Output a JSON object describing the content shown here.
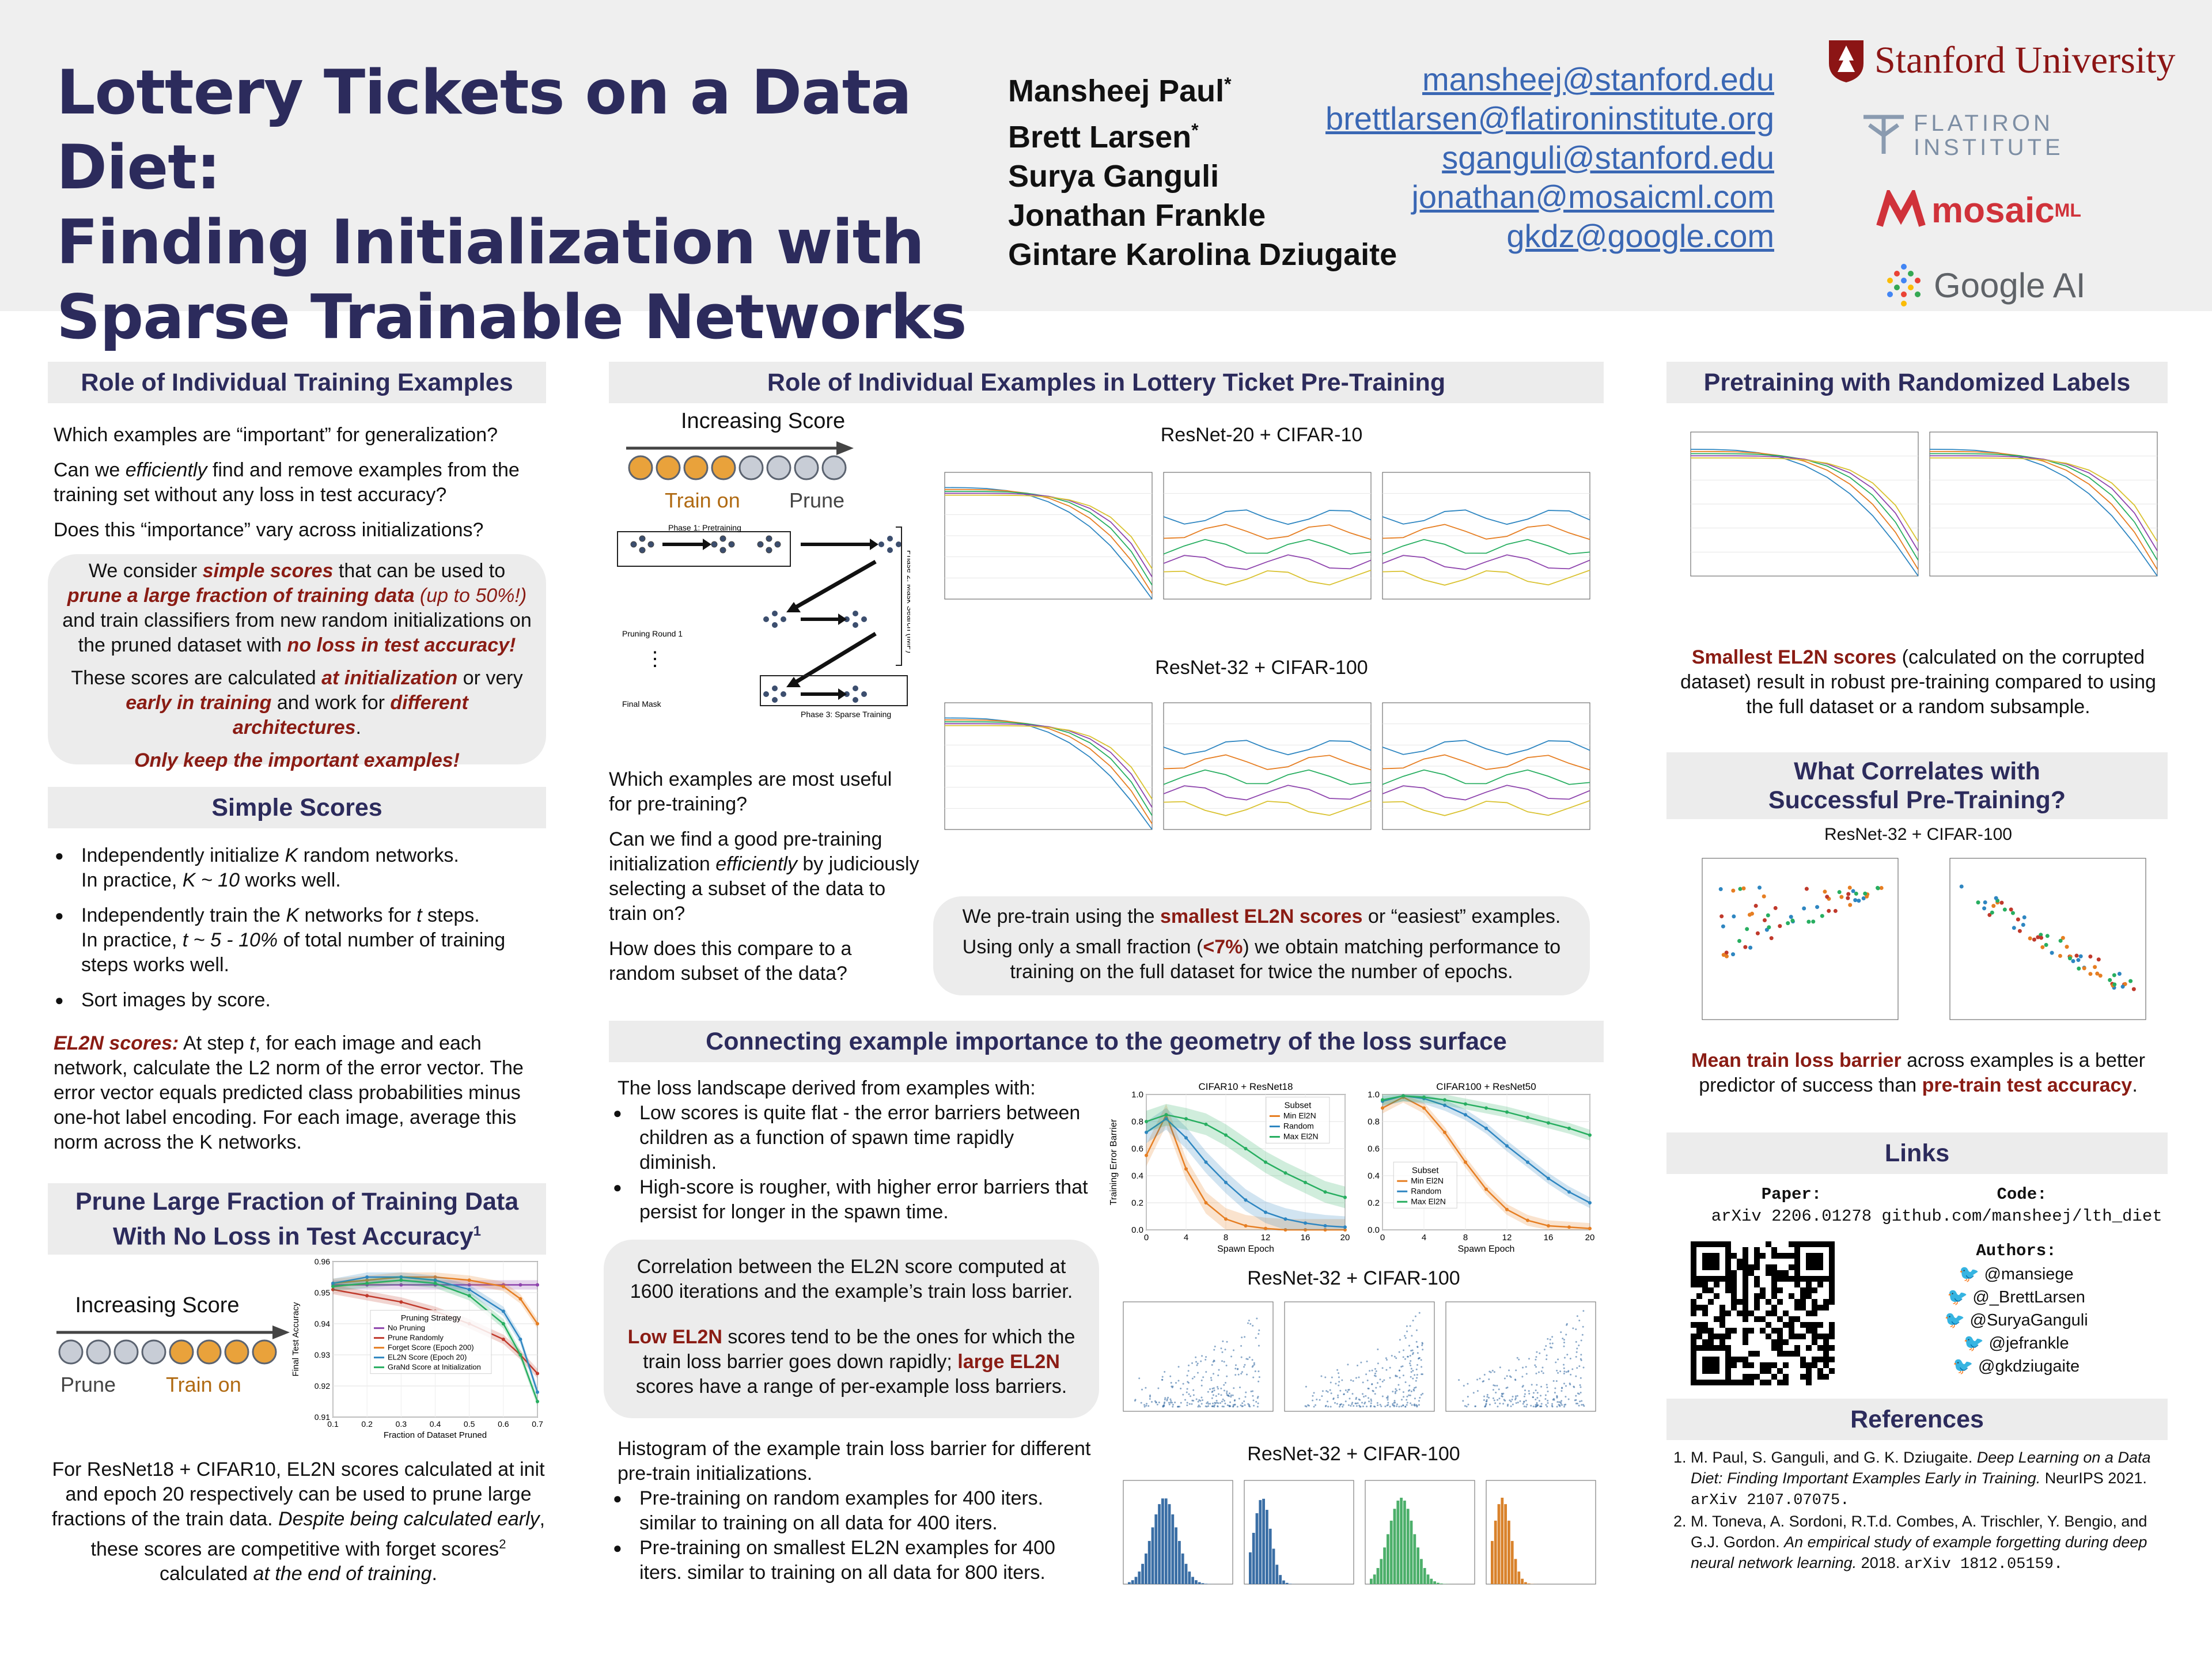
{
  "header": {
    "title_lines": [
      "Lottery Tickets on a Data Diet:",
      "Finding Initialization with",
      "Sparse Trainable Networks"
    ],
    "authors": [
      "Mansheej Paul",
      "Brett Larsen",
      "Surya Ganguli",
      "Jonathan Frankle",
      "Gintare Karolina Dziugaite"
    ],
    "author_mark": "*",
    "emails": [
      "mansheej@stanford.edu",
      "brettlarsen@flatironinstitute.org",
      "sganguli@stanford.edu",
      "jonathan@mosaicml.com",
      "gkdz@google.com"
    ],
    "logos": {
      "stanford": "Stanford University",
      "flatiron_1": "FLATIRON",
      "flatiron_2": "INSTITUTE",
      "mosaic": "mosaic",
      "mosaic_sup": "ML",
      "google": "Google AI"
    },
    "colors": {
      "title": "#2c2b5c",
      "accent_red": "#8a1c14",
      "link_blue": "#3a67b4",
      "stanford_red": "#8c1515"
    }
  },
  "col1": {
    "s1_title": "Role of Individual Training Examples",
    "q1": "Which examples are “important” for generalization?",
    "q2a": "Can we ",
    "q2b": "efficiently",
    "q2c": " find and remove examples from the training set without any loss in test accuracy?",
    "q3": "Does this “importance” vary across initializations?",
    "b1a": "We consider ",
    "b1b": "simple scores",
    "b1c": " that can be used to ",
    "b1d": "prune a large fraction of training data",
    "b1e": " (up to 50%!)",
    "b1f": " and train classifiers from new random initializations on the pruned dataset with ",
    "b1g": "no loss in test accuracy!",
    "b2a": "These scores are calculated ",
    "b2b": "at initialization",
    "b2c": " or very ",
    "b2d": "early in training",
    "b2e": " and work for ",
    "b2f": "different architectures",
    "b2g": ".",
    "b3": "Only keep the important examples!",
    "s2_title": "Simple Scores",
    "l1a": "Independently initialize ",
    "l1b": "K",
    "l1c": " random networks.",
    "l1d": "In practice, ",
    "l1e": "K ~ 10",
    "l1f": " works well.",
    "l2a": "Independently train the ",
    "l2b": "K",
    "l2c": " networks for ",
    "l2d": "t",
    "l2e": " steps.",
    "l2f": "In practice, ",
    "l2g": "t ~ 5 - 10%",
    "l2h": " of total number of training steps works well.",
    "l3": "Sort images by score.",
    "el2n_label": "EL2N scores:",
    "el2n_a": " At step ",
    "el2n_b": "t",
    "el2n_c": ", for each image and each network, calculate the L2 norm of the error vector. The error vector equals predicted class probabilities minus one-hot label encoding. For each image, average this norm across the K networks.",
    "s3_title_1": "Prune Large Fraction of Training Data",
    "s3_title_2": "With No Loss in Test Accuracy",
    "s3_title_sup": "1",
    "scale_title": "Increasing Score",
    "scale_left": "Prune",
    "scale_right": "Train on",
    "p3a": "For ResNet18 + CIFAR10, EL2N scores calculated at init and epoch 20 respectively can be used to prune large fractions of the train data. ",
    "p3b": "Despite being calculated early",
    "p3c": ", these scores are competitive with forget scores",
    "p3sup": "2",
    "p3d": " calculated ",
    "p3e": "at the end of training",
    "p3f": "."
  },
  "col2": {
    "s1_title": "Role of Individual Examples in Lottery Ticket Pre-Training",
    "scale_title": "Increasing Score",
    "scale_left": "Train on",
    "scale_right": "Prune",
    "diagram": {
      "phase1": "Phase 1: Pretraining",
      "phase2": "Phase 2: Mask Search (IMP)",
      "phase3": "Phase 3: Sparse Training",
      "round1": "Pruning Round 1",
      "final": "Final Mask",
      "dots": "⋮"
    },
    "q1": "Which examples are most useful for pre-training?",
    "q2a": "Can we find a good pre-training initialization ",
    "q2b": "efficiently",
    "q2c": " by judiciously selecting a subset of the data to train on?",
    "q3": "How does this compare to a random subset of the data?",
    "fig1_title": "ResNet-20 + CIFAR-10",
    "fig2_title": "ResNet-32 + CIFAR-100",
    "b1a": "We pre-train using the ",
    "b1b": "smallest EL2N scores",
    "b1c": " or “easiest” examples.",
    "b2a": "Using only a small fraction (",
    "b2b": "<7%",
    "b2c": ") we obtain matching performance to training on the full dataset for twice the number of epochs.",
    "s2_title": "Connecting example importance to the geometry of the loss surface",
    "loss_intro": "The loss landscape derived from examples with:",
    "loss_b1": "Low scores is quite flat - the error barriers between children as a function of spawn time rapidly diminish.",
    "loss_b2": "High-score is rougher, with higher error barriers that persist for longer in the spawn time.",
    "corr1": "Correlation between the EL2N score computed at 1600 iterations and the example’s train loss barrier.",
    "corr2a": "Low EL2N",
    "corr2b": " scores tend to be the ones for which the train loss barrier goes down rapidly; ",
    "corr2c": "large EL2N",
    "corr2d": " scores have a range of per-example loss barriers.",
    "hist_intro": "Histogram of the example train loss barrier for different pre-train initializations.",
    "hist_b1": "Pre-training on random examples for 400 iters. similar to training on all data for 400 iters.",
    "hist_b2": "Pre-training on smallest EL2N examples for 400 iters. similar to training on all data for 800 iters.",
    "scatter_title": "ResNet-32 + CIFAR-100",
    "hist_title": "ResNet-32 + CIFAR-100"
  },
  "col3": {
    "s1_title": "Pretraining with Randomized Labels",
    "p1a": "Smallest EL2N scores",
    "p1b": " (calculated on the corrupted dataset) result in robust pre-training compared to using the full dataset or a random subsample.",
    "s2_title_1": "What Correlates with",
    "s2_title_2": "Successful Pre-Training?",
    "corr_fig_title": "ResNet-32 + CIFAR-100",
    "p2a": "Mean train loss barrier",
    "p2b": " across examples is a better predictor of success than ",
    "p2c": "pre-train test accuracy",
    "p2d": ".",
    "links_title": "Links",
    "paper_label": "Paper:",
    "paper_value": "arXiv 2206.01278",
    "code_label": "Code:",
    "code_value": "github.com/mansheej/lth_diet",
    "authors_label": "Authors:",
    "handles": [
      "@mansiege",
      "@_BrettLarsen",
      "@SuryaGanguli",
      "@jefrankle",
      "@gkdziugaite"
    ],
    "refs_title": "References",
    "ref1a": "M. Paul, S. Ganguli, and G. K. Dziugaite. ",
    "ref1b": "Deep Learning on a Data Diet: Finding Important Examples Early in Training.",
    "ref1c": " NeurIPS 2021. ",
    "ref1d": "arXiv 2107.07075.",
    "ref2a": "M. Toneva, A. Sordoni, R.T.d. Combes, A. Trischler, Y. Bengio, and G.J. Gordon. ",
    "ref2b": "An empirical study of example forgetting during deep neural network learning.",
    "ref2c": " 2018. ",
    "ref2d": "arXiv 1812.05159."
  },
  "chart_data": [
    {
      "type": "line",
      "title": "",
      "xlabel": "Fraction of Dataset Pruned",
      "ylabel": "Final Test Accuracy",
      "x": [
        0.1,
        0.2,
        0.3,
        0.4,
        0.5,
        0.6,
        0.65,
        0.7
      ],
      "ylim": [
        0.91,
        0.96
      ],
      "xticks": [
        "0.1",
        "0.2",
        "0.3",
        "0.4",
        "0.5",
        "0.6",
        "0.7"
      ],
      "yticks": [
        "0.91",
        "0.92",
        "0.93",
        "0.94",
        "0.95",
        "0.96"
      ],
      "legend_title": "Pruning Strategy",
      "series": [
        {
          "name": "No Pruning",
          "color": "#8e44ad",
          "values": [
            0.9525,
            0.9525,
            0.9525,
            0.9525,
            0.9525,
            0.9525,
            0.9525,
            0.9525
          ]
        },
        {
          "name": "Prune Randomly",
          "color": "#c0392b",
          "values": [
            0.951,
            0.949,
            0.947,
            0.944,
            0.94,
            0.935,
            0.93,
            0.924
          ]
        },
        {
          "name": "Forget Score (Epoch 200)",
          "color": "#e67e22",
          "values": [
            0.953,
            0.954,
            0.955,
            0.955,
            0.954,
            0.952,
            0.948,
            0.94
          ]
        },
        {
          "name": "EL2N Score (Epoch 20)",
          "color": "#2e86c1",
          "values": [
            0.953,
            0.955,
            0.955,
            0.954,
            0.951,
            0.944,
            0.935,
            0.918
          ]
        },
        {
          "name": "GraNd Score at Initialization",
          "color": "#27ae60",
          "values": [
            0.952,
            0.953,
            0.954,
            0.953,
            0.949,
            0.94,
            0.93,
            0.915
          ]
        }
      ]
    },
    {
      "type": "line",
      "title": "CIFAR10 + ResNet18",
      "xlabel": "Spawn Epoch",
      "ylabel": "Training Error Barrier",
      "x": [
        0,
        2,
        4,
        6,
        8,
        10,
        12,
        14,
        16,
        18,
        20
      ],
      "ylim": [
        0,
        1.0
      ],
      "xticks": [
        "0",
        "4",
        "8",
        "12",
        "16",
        "20"
      ],
      "yticks": [
        "0.0",
        "0.2",
        "0.4",
        "0.6",
        "0.8",
        "1.0"
      ],
      "legend_title": "Subset",
      "series": [
        {
          "name": "Min El2N",
          "color": "#e67e22",
          "values": [
            0.55,
            0.85,
            0.45,
            0.2,
            0.08,
            0.03,
            0.01,
            0.0,
            0.0,
            0.0,
            0.0
          ]
        },
        {
          "name": "Random",
          "color": "#2e86c1",
          "values": [
            0.72,
            0.82,
            0.68,
            0.5,
            0.35,
            0.22,
            0.13,
            0.08,
            0.05,
            0.03,
            0.02
          ]
        },
        {
          "name": "Max El2N",
          "color": "#27ae60",
          "values": [
            0.8,
            0.85,
            0.82,
            0.78,
            0.7,
            0.6,
            0.5,
            0.42,
            0.35,
            0.28,
            0.24
          ]
        }
      ]
    },
    {
      "type": "line",
      "title": "CIFAR100 + ResNet50",
      "xlabel": "Spawn Epoch",
      "ylabel": "",
      "x": [
        0,
        2,
        4,
        6,
        8,
        10,
        12,
        14,
        16,
        18,
        20
      ],
      "ylim": [
        0,
        1.0
      ],
      "xticks": [
        "0",
        "4",
        "8",
        "12",
        "16",
        "20"
      ],
      "yticks": [
        "0.0",
        "0.2",
        "0.4",
        "0.6",
        "0.8",
        "1.0"
      ],
      "legend_title": "Subset",
      "series": [
        {
          "name": "Min El2N",
          "color": "#e67e22",
          "values": [
            0.9,
            0.98,
            0.9,
            0.72,
            0.5,
            0.3,
            0.15,
            0.07,
            0.03,
            0.02,
            0.01
          ]
        },
        {
          "name": "Random",
          "color": "#2e86c1",
          "values": [
            0.95,
            0.99,
            0.97,
            0.92,
            0.85,
            0.75,
            0.62,
            0.5,
            0.38,
            0.28,
            0.2
          ]
        },
        {
          "name": "Max El2N",
          "color": "#27ae60",
          "values": [
            0.96,
            0.99,
            0.98,
            0.96,
            0.93,
            0.9,
            0.87,
            0.83,
            0.79,
            0.75,
            0.7
          ]
        }
      ]
    }
  ]
}
